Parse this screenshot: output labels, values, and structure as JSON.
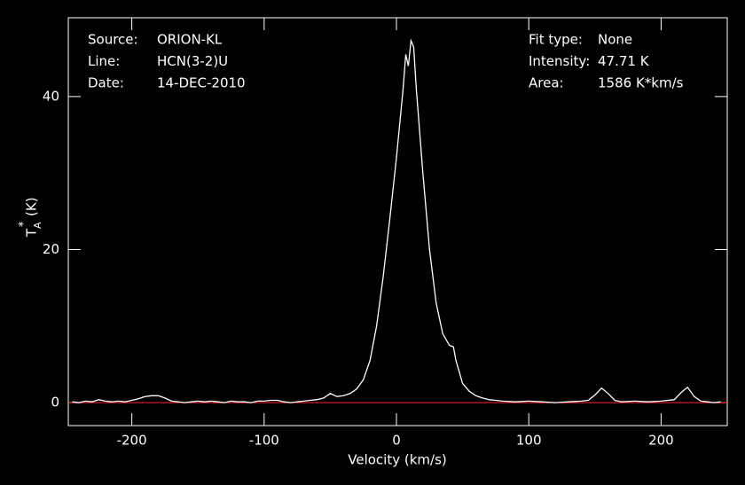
{
  "chart_data": {
    "type": "line",
    "xlabel": "Velocity (km/s)",
    "ylabel": {
      "base": "T",
      "sub": "A",
      "sup": "*",
      "unit": "(K)"
    },
    "info_left": [
      [
        "Source:",
        "ORION-KL"
      ],
      [
        "Line:",
        "HCN(3-2)U"
      ],
      [
        "Date:",
        "14-DEC-2010"
      ]
    ],
    "info_right": [
      [
        "Fit type:",
        "None"
      ],
      [
        "Intensity:",
        "47.71 K"
      ],
      [
        "Area:",
        "1586 K*km/s"
      ]
    ],
    "baseline": 0,
    "baseline_color": "#ff2020",
    "xlim": [
      -248,
      250
    ],
    "ylim": [
      -3,
      50.3
    ],
    "xticks": [
      -200,
      -100,
      0,
      100,
      200
    ],
    "yticks": [
      0,
      20,
      40
    ],
    "x": [
      -245,
      -240,
      -235,
      -230,
      -225,
      -220,
      -215,
      -210,
      -205,
      -200,
      -195,
      -190,
      -185,
      -180,
      -175,
      -170,
      -165,
      -160,
      -155,
      -150,
      -145,
      -140,
      -135,
      -130,
      -125,
      -120,
      -115,
      -110,
      -105,
      -100,
      -95,
      -90,
      -85,
      -80,
      -75,
      -70,
      -65,
      -60,
      -55,
      -50,
      -45,
      -40,
      -35,
      -30,
      -25,
      -20,
      -15,
      -10,
      -5,
      0,
      5,
      7,
      9,
      11,
      13,
      15,
      20,
      25,
      30,
      35,
      40,
      43,
      45,
      50,
      55,
      60,
      65,
      70,
      75,
      80,
      90,
      100,
      110,
      120,
      130,
      140,
      145,
      150,
      155,
      160,
      165,
      170,
      180,
      190,
      200,
      210,
      215,
      220,
      225,
      230,
      235,
      240,
      245
    ],
    "series": [
      {
        "name": "spectrum",
        "color": "#ffffff",
        "values": [
          0.1,
          0,
          0.2,
          0.1,
          0.4,
          0.2,
          0.1,
          0.2,
          0.1,
          0.3,
          0.5,
          0.8,
          0.9,
          0.9,
          0.6,
          0.2,
          0.1,
          0,
          0.1,
          0.2,
          0.1,
          0.2,
          0.1,
          0,
          0.2,
          0.1,
          0.1,
          0,
          0.2,
          0.2,
          0.3,
          0.3,
          0.1,
          0,
          0.1,
          0.2,
          0.3,
          0.4,
          0.6,
          1.2,
          0.8,
          0.9,
          1.2,
          1.8,
          3.0,
          5.5,
          10,
          16.5,
          24,
          32,
          41,
          45.5,
          44,
          47.3,
          46.5,
          41,
          30,
          20,
          13,
          9,
          7.5,
          7.3,
          5.5,
          2.5,
          1.5,
          0.9,
          0.6,
          0.4,
          0.3,
          0.2,
          0.1,
          0.2,
          0.1,
          0,
          0.1,
          0.2,
          0.3,
          1.0,
          1.9,
          1.2,
          0.3,
          0.1,
          0.2,
          0.1,
          0.2,
          0.4,
          1.3,
          2.0,
          0.8,
          0.2,
          0.1,
          0,
          0.1
        ]
      }
    ]
  }
}
